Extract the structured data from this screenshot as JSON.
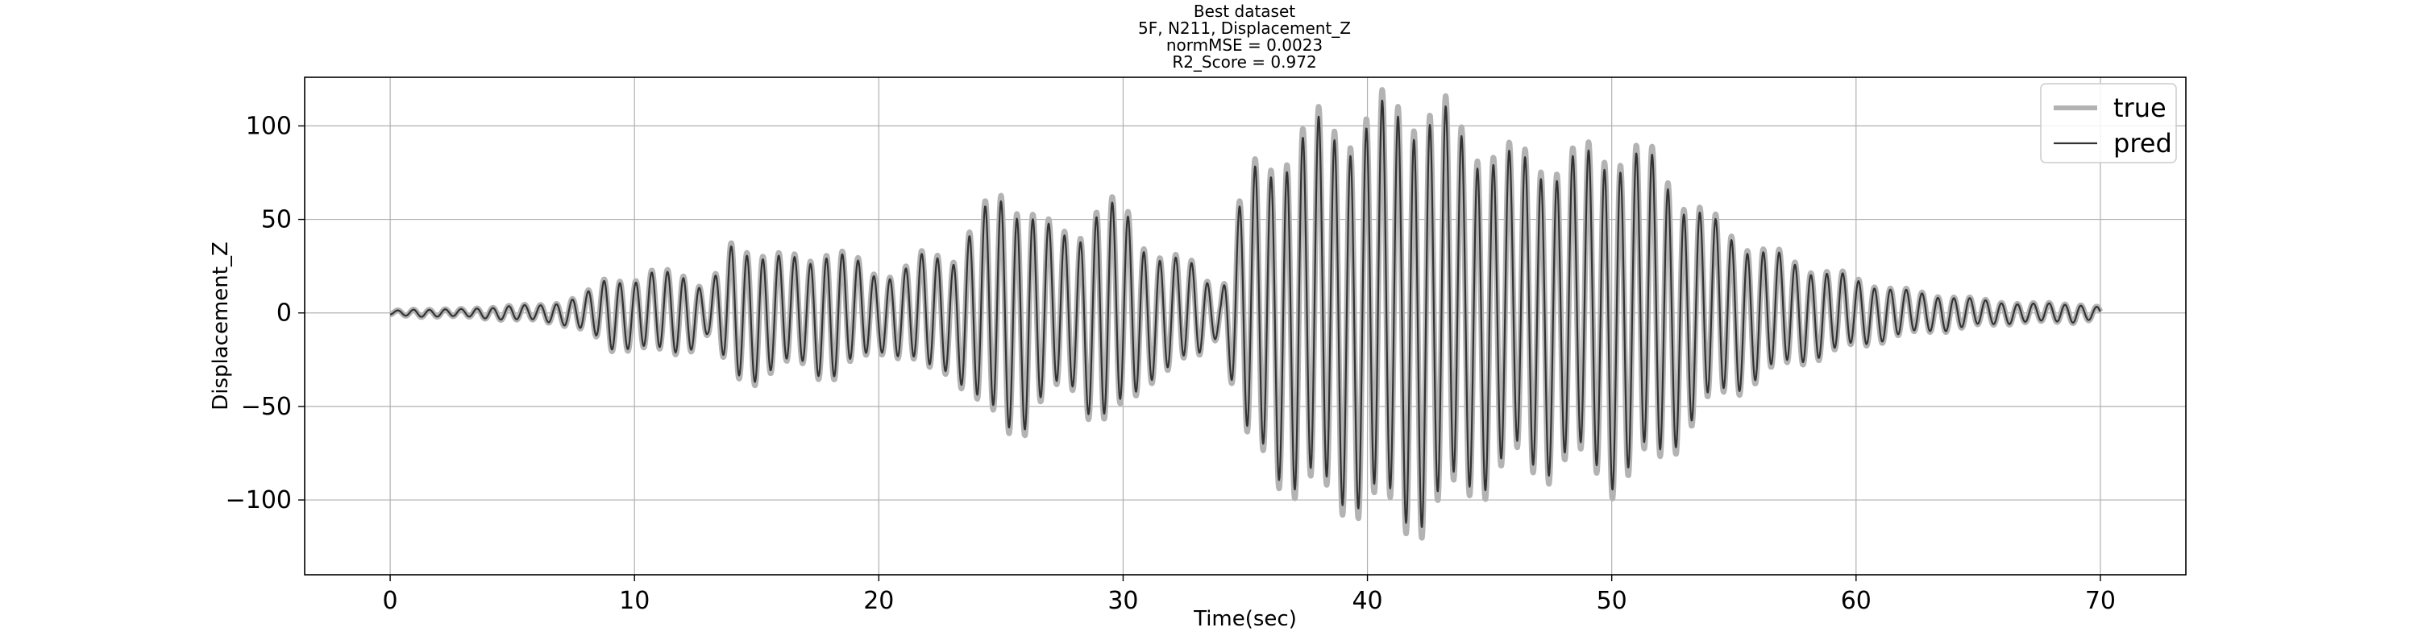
{
  "chart_data": {
    "type": "line",
    "title_lines": [
      "Best dataset",
      "5F, N211, Displacement_Z",
      "normMSE = 0.0023",
      "R2_Score = 0.972"
    ],
    "xlabel": "Time(sec)",
    "ylabel": "Displacement_Z",
    "xlim": [
      -3.5,
      73.5
    ],
    "ylim": [
      -140,
      126
    ],
    "x_ticks": [
      0,
      10,
      20,
      30,
      40,
      50,
      60,
      70
    ],
    "x_tick_labels": [
      "0",
      "10",
      "20",
      "30",
      "40",
      "50",
      "60",
      "70"
    ],
    "y_ticks": [
      100,
      50,
      0,
      -50,
      -100
    ],
    "y_tick_labels": [
      "100",
      "50",
      "0",
      "−50",
      "−100"
    ],
    "grid": true,
    "legend": {
      "position": "top-right",
      "entries": [
        "true",
        "pred"
      ]
    },
    "series": [
      {
        "name": "true",
        "color": "#b3b3b3"
      },
      {
        "name": "pred",
        "color": "#333333"
      }
    ],
    "envelope": {
      "t": [
        0,
        1,
        2,
        3,
        4,
        5,
        6,
        7,
        8,
        9,
        10,
        11,
        12,
        13,
        14,
        15,
        16,
        17,
        18,
        19,
        20,
        21,
        22,
        23,
        24,
        25,
        26,
        27,
        28,
        29,
        30,
        31,
        32,
        33,
        34,
        35,
        36,
        37,
        38,
        39,
        40,
        41,
        42,
        43,
        44,
        45,
        46,
        47,
        48,
        49,
        50,
        51,
        52,
        53,
        54,
        55,
        56,
        57,
        58,
        59,
        60,
        61,
        62,
        63,
        64,
        65,
        66,
        67,
        68,
        69,
        70
      ],
      "peak": [
        1,
        2,
        2,
        2,
        3,
        4,
        4,
        6,
        10,
        20,
        18,
        22,
        22,
        12,
        36,
        35,
        30,
        28,
        36,
        28,
        20,
        24,
        32,
        30,
        50,
        62,
        60,
        45,
        40,
        60,
        55,
        35,
        30,
        25,
        10,
        72,
        80,
        95,
        100,
        100,
        105,
        110,
        112,
        108,
        95,
        90,
        82,
        85,
        80,
        85,
        90,
        85,
        80,
        62,
        50,
        42,
        35,
        30,
        25,
        22,
        18,
        15,
        12,
        10,
        9,
        7,
        6,
        5,
        5,
        5,
        3
      ]
    },
    "period": 0.65
  }
}
